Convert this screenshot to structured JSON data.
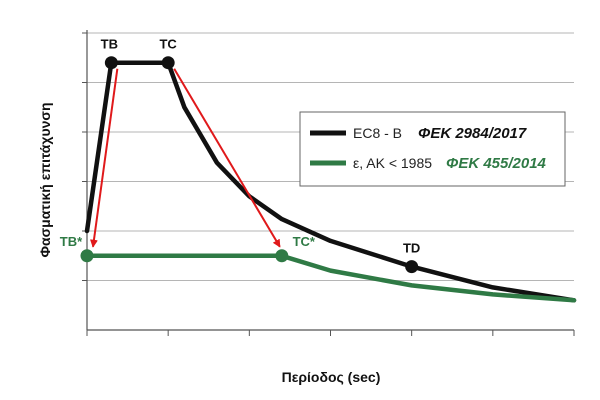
{
  "chart_data": {
    "type": "line",
    "xlabel": "Περίοδος (sec)",
    "ylabel": "Φασματική επιτάχυνση",
    "xlim": [
      0,
      3
    ],
    "ylim": [
      0,
      3
    ],
    "grid": "horizontal",
    "legend_position": "center-right",
    "series": [
      {
        "name": "EC8 - B",
        "reference": "ΦΕΚ 2984/2017",
        "color": "#111111",
        "x": [
          0,
          0.15,
          0.5,
          0.6,
          0.8,
          1.0,
          1.2,
          1.5,
          2.0,
          2.5,
          3.0
        ],
        "y": [
          1.0,
          2.7,
          2.7,
          2.25,
          1.69,
          1.35,
          1.12,
          0.9,
          0.64,
          0.43,
          0.3
        ]
      },
      {
        "name": "ε, ΑΚ < 1985",
        "reference": "ΦΕΚ 455/2014",
        "color": "#2f7a45",
        "x": [
          0,
          1.2,
          1.5,
          2.0,
          2.5,
          3.0
        ],
        "y": [
          0.75,
          0.75,
          0.6,
          0.45,
          0.36,
          0.3
        ]
      }
    ],
    "points": [
      {
        "label": "TB",
        "x": 0.15,
        "y": 2.7,
        "series": 0
      },
      {
        "label": "TC",
        "x": 0.5,
        "y": 2.7,
        "series": 0
      },
      {
        "label": "TD",
        "x": 2.0,
        "y": 0.64,
        "series": 0
      },
      {
        "label": "TB*",
        "x": 0,
        "y": 0.75,
        "series": 1
      },
      {
        "label": "TC*",
        "x": 1.2,
        "y": 0.75,
        "series": 1
      }
    ],
    "arrows": [
      {
        "from": "TB",
        "to": "TB*"
      },
      {
        "from": "TC",
        "to": "TC*"
      }
    ],
    "arrow_color": "#e0191b"
  }
}
